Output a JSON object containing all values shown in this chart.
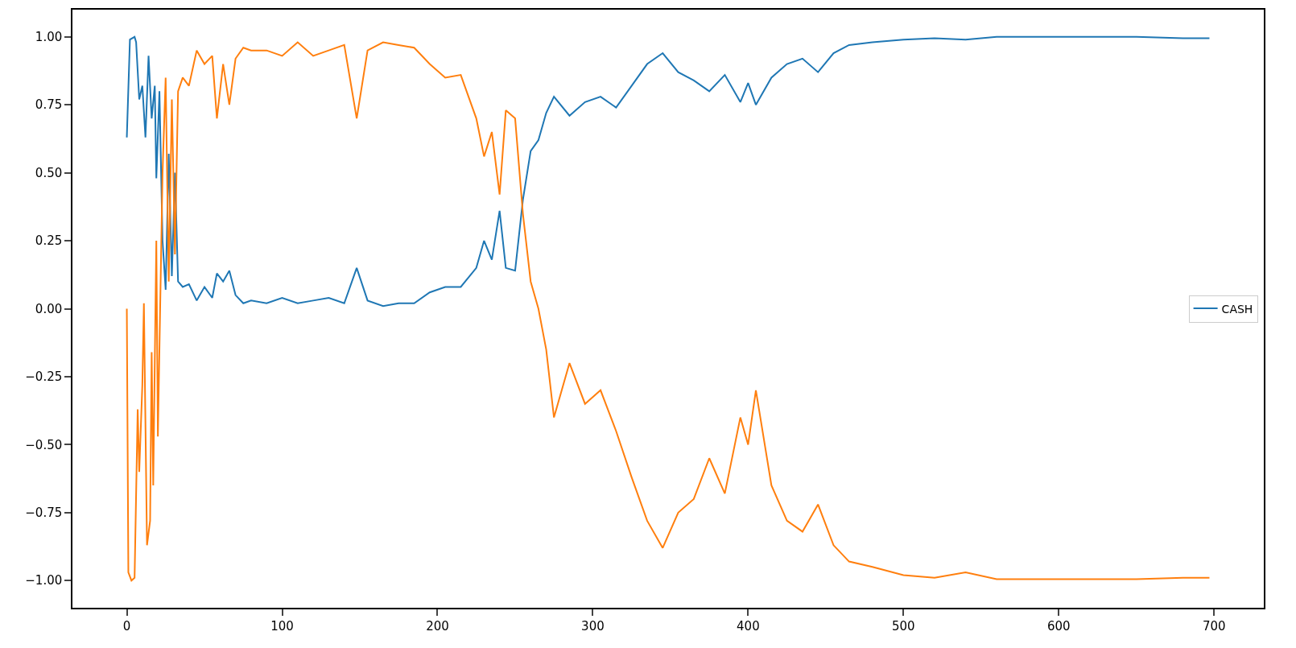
{
  "chart_data": {
    "type": "line",
    "xlim": [
      -35,
      732
    ],
    "ylim": [
      -1.1,
      1.1
    ],
    "xticks": [
      0,
      100,
      200,
      300,
      400,
      500,
      600,
      700
    ],
    "yticks": [
      {
        "value": -1,
        "label": "−1.00"
      },
      {
        "value": -0.75,
        "label": "−0.75"
      },
      {
        "value": -0.5,
        "label": "−0.50"
      },
      {
        "value": -0.25,
        "label": "−0.25"
      },
      {
        "value": 0,
        "label": "0.00"
      },
      {
        "value": 0.25,
        "label": "0.25"
      },
      {
        "value": 0.5,
        "label": "0.50"
      },
      {
        "value": 0.75,
        "label": "0.75"
      },
      {
        "value": 1,
        "label": "1.00"
      }
    ],
    "legend": "right",
    "marker": "none",
    "line_style": "solid",
    "series": [
      {
        "name": "CASH",
        "color": "#1f77b4",
        "x": [
          0,
          2,
          5,
          6,
          8,
          10,
          12,
          14,
          16,
          18,
          19,
          21,
          23,
          25,
          27,
          29,
          31,
          33,
          36,
          40,
          45,
          50,
          55,
          58,
          62,
          66,
          70,
          75,
          80,
          90,
          100,
          110,
          120,
          130,
          140,
          148,
          155,
          165,
          175,
          185,
          195,
          205,
          215,
          225,
          230,
          235,
          240,
          244,
          250,
          255,
          260,
          265,
          270,
          275,
          285,
          295,
          305,
          315,
          325,
          335,
          345,
          355,
          365,
          375,
          385,
          395,
          400,
          405,
          415,
          425,
          435,
          445,
          455,
          465,
          480,
          500,
          520,
          540,
          560,
          600,
          650,
          680,
          697
        ],
        "values": [
          0.63,
          0.99,
          1.0,
          0.98,
          0.77,
          0.82,
          0.63,
          0.93,
          0.7,
          0.82,
          0.48,
          0.8,
          0.25,
          0.07,
          0.57,
          0.12,
          0.5,
          0.1,
          0.08,
          0.09,
          0.03,
          0.08,
          0.04,
          0.13,
          0.1,
          0.14,
          0.05,
          0.02,
          0.03,
          0.02,
          0.04,
          0.02,
          0.03,
          0.04,
          0.02,
          0.15,
          0.03,
          0.01,
          0.02,
          0.02,
          0.06,
          0.08,
          0.08,
          0.15,
          0.25,
          0.18,
          0.36,
          0.15,
          0.14,
          0.4,
          0.58,
          0.62,
          0.72,
          0.78,
          0.71,
          0.76,
          0.78,
          0.74,
          0.82,
          0.9,
          0.94,
          0.87,
          0.84,
          0.8,
          0.86,
          0.76,
          0.83,
          0.75,
          0.85,
          0.9,
          0.92,
          0.87,
          0.94,
          0.97,
          0.98,
          0.99,
          0.995,
          0.99,
          1.0,
          1.0,
          1.0,
          0.995,
          0.995
        ]
      },
      {
        "color": "#ff7f0e",
        "x": [
          0,
          1,
          3,
          5,
          7,
          8,
          10,
          11,
          13,
          15,
          16,
          17,
          19,
          20,
          23,
          25,
          27,
          29,
          31,
          33,
          36,
          40,
          45,
          50,
          55,
          58,
          62,
          66,
          70,
          75,
          80,
          90,
          100,
          110,
          120,
          130,
          140,
          148,
          155,
          165,
          175,
          185,
          195,
          205,
          215,
          225,
          230,
          235,
          240,
          244,
          250,
          255,
          260,
          265,
          270,
          275,
          285,
          295,
          305,
          315,
          325,
          335,
          345,
          355,
          365,
          375,
          385,
          395,
          400,
          405,
          415,
          425,
          435,
          445,
          455,
          465,
          480,
          500,
          520,
          540,
          560,
          600,
          650,
          680,
          697
        ],
        "values": [
          0.0,
          -0.97,
          -1.0,
          -0.99,
          -0.37,
          -0.6,
          -0.28,
          0.02,
          -0.87,
          -0.78,
          -0.16,
          -0.65,
          0.25,
          -0.47,
          0.5,
          0.85,
          0.1,
          0.77,
          0.2,
          0.8,
          0.85,
          0.82,
          0.95,
          0.9,
          0.93,
          0.7,
          0.9,
          0.75,
          0.92,
          0.96,
          0.95,
          0.95,
          0.93,
          0.98,
          0.93,
          0.95,
          0.97,
          0.7,
          0.95,
          0.98,
          0.97,
          0.96,
          0.9,
          0.85,
          0.86,
          0.7,
          0.56,
          0.65,
          0.42,
          0.73,
          0.7,
          0.35,
          0.1,
          0.0,
          -0.15,
          -0.4,
          -0.2,
          -0.35,
          -0.3,
          -0.45,
          -0.62,
          -0.78,
          -0.88,
          -0.75,
          -0.7,
          -0.55,
          -0.68,
          -0.4,
          -0.5,
          -0.3,
          -0.65,
          -0.78,
          -0.82,
          -0.72,
          -0.87,
          -0.93,
          -0.95,
          -0.98,
          -0.99,
          -0.97,
          -0.995,
          -0.995,
          -0.995,
          -0.99,
          -0.99
        ]
      }
    ]
  }
}
